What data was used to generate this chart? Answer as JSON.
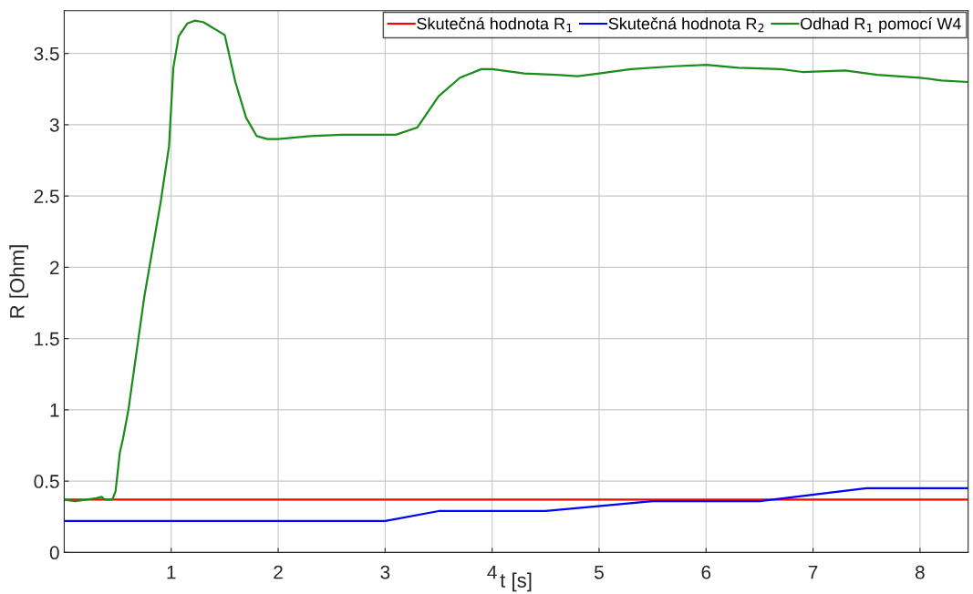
{
  "chart_data": {
    "type": "line",
    "xlabel": "t [s]",
    "ylabel": "R [Ohm]",
    "xlim": [
      0,
      8.45
    ],
    "ylim": [
      0,
      3.8
    ],
    "xticks": [
      1,
      2,
      3,
      4,
      5,
      6,
      7,
      8
    ],
    "yticks": [
      0,
      0.5,
      1,
      1.5,
      2,
      2.5,
      3,
      3.5
    ],
    "grid": true,
    "legend": "top right",
    "line_style": "solid",
    "marker": "none",
    "series": [
      {
        "name": "Skutečná hodnota R$_{1}$",
        "color": "#ff0000",
        "x": [
          0,
          8.45
        ],
        "values": [
          0.37,
          0.37
        ]
      },
      {
        "name": "Skutečná hodnota R$_{2}$",
        "color": "#0000ff",
        "x": [
          0,
          3,
          3.5,
          4.5,
          5.5,
          6.5,
          7.5,
          8.45
        ],
        "values": [
          0.22,
          0.22,
          0.29,
          0.29,
          0.36,
          0.36,
          0.45,
          0.45
        ]
      },
      {
        "name": "Odhad R$_{1}$ pomocí W4",
        "color": "#1a8c1a",
        "x": [
          0,
          0.1,
          0.3,
          0.35,
          0.38,
          0.45,
          0.48,
          0.52,
          0.55,
          0.6,
          0.75,
          0.9,
          0.98,
          1.02,
          1.07,
          1.15,
          1.22,
          1.3,
          1.5,
          1.6,
          1.7,
          1.8,
          1.9,
          2.0,
          2.3,
          2.6,
          3.0,
          3.1,
          3.3,
          3.5,
          3.7,
          3.9,
          4.0,
          4.3,
          4.6,
          4.8,
          5.0,
          5.3,
          5.7,
          6.0,
          6.3,
          6.7,
          6.9,
          7.3,
          7.6,
          8.0,
          8.2,
          8.45
        ],
        "values": [
          0.37,
          0.36,
          0.38,
          0.39,
          0.37,
          0.37,
          0.43,
          0.7,
          0.8,
          1.0,
          1.8,
          2.45,
          2.85,
          3.4,
          3.62,
          3.71,
          3.73,
          3.72,
          3.63,
          3.3,
          3.05,
          2.92,
          2.9,
          2.9,
          2.92,
          2.93,
          2.93,
          2.93,
          2.98,
          3.2,
          3.33,
          3.39,
          3.39,
          3.36,
          3.35,
          3.34,
          3.36,
          3.39,
          3.41,
          3.42,
          3.4,
          3.39,
          3.37,
          3.38,
          3.35,
          3.33,
          3.31,
          3.3
        ]
      }
    ]
  }
}
